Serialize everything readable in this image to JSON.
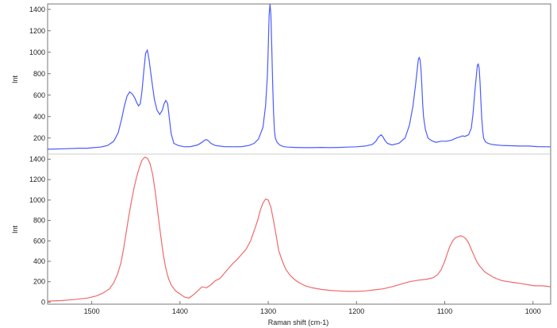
{
  "chart_data": [
    {
      "type": "line",
      "panel": "top",
      "xlabel": "",
      "ylabel": "Int",
      "xlim": [
        1550,
        980
      ],
      "ylim": [
        50,
        1450
      ],
      "y_ticks": [
        "200",
        "400",
        "600",
        "800",
        "1000",
        "1200",
        "1400"
      ],
      "grid": false,
      "color": "#4a5cff",
      "series": [
        {
          "x": [
            1550,
            1530,
            1515,
            1505,
            1498,
            1490,
            1482,
            1475,
            1470,
            1466,
            1463,
            1460,
            1457,
            1454,
            1451,
            1449,
            1447,
            1445,
            1443,
            1441,
            1439,
            1437,
            1435,
            1432,
            1429,
            1426,
            1423,
            1420,
            1418,
            1416,
            1414,
            1412,
            1410,
            1407,
            1402,
            1395,
            1388,
            1380,
            1375,
            1372,
            1370,
            1368,
            1365,
            1360,
            1350,
            1340,
            1330,
            1322,
            1316,
            1311,
            1306,
            1303,
            1301,
            1300,
            1299,
            1298,
            1297,
            1296,
            1295,
            1294,
            1293,
            1292,
            1290,
            1287,
            1283,
            1278,
            1270,
            1260,
            1250,
            1240,
            1230,
            1220,
            1210,
            1200,
            1190,
            1182,
            1178,
            1175,
            1172,
            1170,
            1168,
            1165,
            1160,
            1152,
            1145,
            1140,
            1136,
            1133,
            1131,
            1130,
            1129,
            1128,
            1127,
            1126,
            1125,
            1124,
            1122,
            1119,
            1115,
            1110,
            1104,
            1098,
            1092,
            1087,
            1083,
            1080,
            1077,
            1073,
            1070,
            1068,
            1066,
            1064,
            1063,
            1062,
            1061,
            1060,
            1059,
            1058,
            1057,
            1056,
            1054,
            1051,
            1047,
            1042,
            1035,
            1025,
            1015,
            1005,
            995,
            985,
            980
          ],
          "y": [
            95,
            100,
            105,
            105,
            110,
            115,
            130,
            170,
            250,
            380,
            500,
            590,
            630,
            610,
            570,
            530,
            500,
            520,
            640,
            820,
            990,
            1020,
            930,
            740,
            560,
            460,
            420,
            460,
            520,
            550,
            520,
            380,
            240,
            150,
            130,
            118,
            120,
            135,
            160,
            180,
            185,
            175,
            150,
            130,
            120,
            118,
            120,
            130,
            150,
            190,
            300,
            500,
            780,
            1050,
            1350,
            1450,
            1350,
            1050,
            720,
            450,
            270,
            200,
            160,
            135,
            120,
            115,
            112,
            110,
            110,
            112,
            110,
            112,
            115,
            118,
            125,
            140,
            170,
            210,
            230,
            210,
            180,
            150,
            135,
            150,
            200,
            320,
            500,
            700,
            850,
            930,
            950,
            930,
            850,
            700,
            520,
            400,
            280,
            200,
            175,
            160,
            170,
            170,
            180,
            200,
            210,
            220,
            215,
            230,
            290,
            420,
            620,
            800,
            880,
            890,
            850,
            720,
            540,
            380,
            270,
            200,
            165,
            150,
            140,
            135,
            130,
            128,
            125,
            125,
            120,
            118,
            118
          ]
        }
      ]
    },
    {
      "type": "line",
      "panel": "bottom",
      "xlabel": "Raman shift (cm-1)",
      "ylabel": "Int",
      "xlim": [
        1550,
        980
      ],
      "ylim": [
        -20,
        1450
      ],
      "x_ticks": [
        "1500",
        "1400",
        "1300",
        "1200",
        "1100",
        "1000"
      ],
      "x_tick_values": [
        1500,
        1400,
        1300,
        1200,
        1100,
        1000
      ],
      "y_ticks": [
        "0",
        "200",
        "400",
        "600",
        "800",
        "1000",
        "1200",
        "1400"
      ],
      "grid": false,
      "color": "#f06a6a",
      "series": [
        {
          "x": [
            1550,
            1535,
            1520,
            1505,
            1495,
            1487,
            1480,
            1475,
            1471,
            1467,
            1464,
            1461,
            1458,
            1455,
            1452,
            1449,
            1446,
            1443,
            1440,
            1437,
            1434,
            1431,
            1428,
            1425,
            1422,
            1419,
            1416,
            1413,
            1410,
            1405,
            1400,
            1395,
            1390,
            1385,
            1380,
            1375,
            1370,
            1365,
            1360,
            1355,
            1350,
            1345,
            1340,
            1335,
            1330,
            1325,
            1320,
            1316,
            1312,
            1309,
            1306,
            1303,
            1300,
            1297,
            1294,
            1291,
            1288,
            1284,
            1280,
            1275,
            1270,
            1265,
            1258,
            1250,
            1240,
            1230,
            1220,
            1210,
            1200,
            1190,
            1180,
            1170,
            1160,
            1150,
            1140,
            1130,
            1120,
            1113,
            1108,
            1104,
            1100,
            1097,
            1094,
            1091,
            1088,
            1085,
            1082,
            1079,
            1076,
            1073,
            1070,
            1067,
            1064,
            1061,
            1058,
            1055,
            1052,
            1048,
            1044,
            1040,
            1035,
            1028,
            1020,
            1012,
            1005,
            998,
            990,
            984,
            980
          ],
          "y": [
            10,
            15,
            25,
            40,
            60,
            90,
            130,
            190,
            270,
            380,
            520,
            680,
            840,
            990,
            1120,
            1230,
            1320,
            1390,
            1420,
            1410,
            1360,
            1250,
            1080,
            870,
            660,
            470,
            330,
            230,
            170,
            110,
            80,
            50,
            40,
            70,
            110,
            150,
            140,
            170,
            210,
            230,
            280,
            330,
            380,
            420,
            470,
            520,
            600,
            700,
            800,
            900,
            970,
            1010,
            1000,
            930,
            800,
            650,
            500,
            400,
            320,
            260,
            220,
            190,
            160,
            140,
            125,
            115,
            110,
            105,
            105,
            110,
            120,
            130,
            150,
            175,
            200,
            215,
            225,
            240,
            270,
            320,
            400,
            480,
            550,
            600,
            630,
            640,
            650,
            640,
            620,
            580,
            520,
            460,
            400,
            360,
            330,
            300,
            280,
            260,
            240,
            225,
            210,
            200,
            190,
            180,
            170,
            160,
            160,
            155,
            150
          ]
        }
      ]
    }
  ]
}
